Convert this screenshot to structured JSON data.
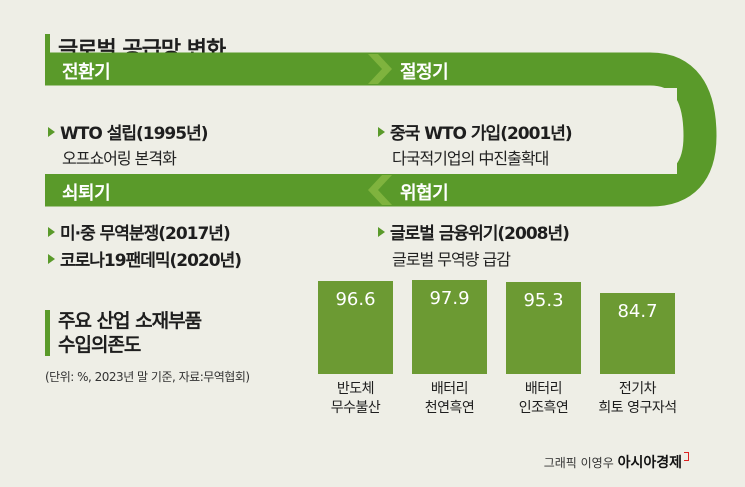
{
  "title": "글로벌 공급망 변화",
  "stages": [
    {
      "label": "전환기",
      "item": "WTO 설립(1995년)",
      "desc": "오프쇼어링 본격화"
    },
    {
      "label": "절정기",
      "item": "중국 WTO 가입(2001년)",
      "desc": "다국적기업의 中진출확대"
    },
    {
      "label": "쇠퇴기",
      "items": [
        "미·중 무역분쟁(2017년)",
        "코로나19팬데믹(2020년)"
      ]
    },
    {
      "label": "위협기",
      "item": "글로벌 금융위기(2008년)",
      "desc": "글로벌 무역량 급감"
    }
  ],
  "chart_title_line1": "주요 산업 소재부품",
  "chart_title_line2": "수입의존도",
  "chart_note": "(단위: %, 2023년 말 기준, 자료:무역협회)",
  "credit": "그래픽 이영우",
  "brand": "아시아경제",
  "colors": {
    "green": "#6c9a33",
    "ribbon": "#5a9a2a",
    "background": "#eeeee6"
  },
  "chart_data": {
    "type": "bar",
    "categories": [
      [
        "반도체",
        "무수불산"
      ],
      [
        "배터리",
        "천연흑연"
      ],
      [
        "배터리",
        "인조흑연"
      ],
      [
        "전기차",
        "희토 영구자석"
      ]
    ],
    "values": [
      96.6,
      97.9,
      95.3,
      84.7
    ],
    "value_labels": [
      "96.6",
      "97.9",
      "95.3",
      "84.7"
    ],
    "unit": "%"
  }
}
